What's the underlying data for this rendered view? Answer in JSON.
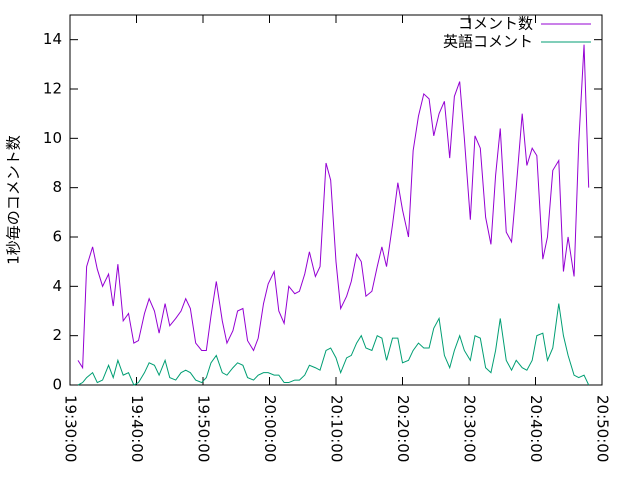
{
  "chart_data": {
    "type": "line",
    "y_label": "1秒毎のコメント数",
    "xlim": [
      0,
      80
    ],
    "xticks": [
      {
        "value": 0,
        "label": "19:30:00"
      },
      {
        "value": 10,
        "label": "19:40:00"
      },
      {
        "value": 20,
        "label": "19:50:00"
      },
      {
        "value": 30,
        "label": "20:00:00"
      },
      {
        "value": 40,
        "label": "20:10:00"
      },
      {
        "value": 50,
        "label": "20:20:00"
      },
      {
        "value": 60,
        "label": "20:30:00"
      },
      {
        "value": 70,
        "label": "20:40:00"
      },
      {
        "value": 80,
        "label": "20:50:00"
      }
    ],
    "ylim": [
      0,
      15
    ],
    "yticks": [
      0,
      2,
      4,
      6,
      8,
      10,
      12,
      14
    ],
    "legend": "top-right",
    "x": [
      1.2,
      1.9,
      2.5,
      3.4,
      4.1,
      4.9,
      5.8,
      6.5,
      7.2,
      8.0,
      8.8,
      9.6,
      10.3,
      11.2,
      11.9,
      12.7,
      13.4,
      14.3,
      15.0,
      15.9,
      16.7,
      17.4,
      18.1,
      18.9,
      19.8,
      20.5,
      21.2,
      22.0,
      22.9,
      23.6,
      24.5,
      25.2,
      26.0,
      26.7,
      27.6,
      28.3,
      29.1,
      29.8,
      30.7,
      31.4,
      32.2,
      32.9,
      33.8,
      34.5,
      35.3,
      36.0,
      36.9,
      37.6,
      38.5,
      39.2,
      40.0,
      40.7,
      41.6,
      42.3,
      43.1,
      43.8,
      44.5,
      45.4,
      46.2,
      46.9,
      47.6,
      48.5,
      49.3,
      50.0,
      50.9,
      51.6,
      52.4,
      53.2,
      54.0,
      54.7,
      55.5,
      56.3,
      57.1,
      57.8,
      58.6,
      59.3,
      60.2,
      60.9,
      61.7,
      62.5,
      63.3,
      64.0,
      64.7,
      65.6,
      66.4,
      67.1,
      68.0,
      68.7,
      69.5,
      70.2,
      71.1,
      71.8,
      72.6,
      73.5,
      74.2,
      74.9,
      75.8,
      76.5,
      77.3,
      78.0
    ],
    "series": [
      {
        "name": "コメント数",
        "color": "#9400d3",
        "values": [
          1.0,
          0.7,
          4.8,
          5.6,
          4.7,
          4.0,
          4.5,
          3.2,
          4.9,
          2.6,
          2.9,
          1.7,
          1.8,
          2.9,
          3.5,
          3.0,
          2.1,
          3.3,
          2.4,
          2.7,
          3.0,
          3.5,
          3.1,
          1.7,
          1.4,
          1.4,
          2.8,
          4.2,
          2.6,
          1.7,
          2.2,
          3.0,
          3.1,
          1.8,
          1.4,
          1.9,
          3.3,
          4.1,
          4.6,
          3.0,
          2.5,
          4.0,
          3.7,
          3.8,
          4.5,
          5.4,
          4.4,
          4.8,
          9.0,
          8.3,
          5.0,
          3.1,
          3.6,
          4.2,
          5.3,
          5.0,
          3.6,
          3.8,
          4.8,
          5.6,
          4.8,
          6.5,
          8.2,
          7.1,
          6.0,
          9.5,
          10.9,
          11.8,
          11.6,
          10.1,
          11.0,
          11.5,
          9.2,
          11.7,
          12.3,
          10.0,
          6.7,
          10.1,
          9.6,
          6.8,
          5.7,
          8.5,
          10.4,
          6.2,
          5.8,
          8.0,
          11.0,
          8.9,
          9.6,
          9.3,
          5.1,
          6.0,
          8.7,
          9.1,
          4.6,
          6.0,
          4.4,
          9.8,
          13.8,
          8.0
        ]
      },
      {
        "name": "英語コメント",
        "color": "#009e73",
        "values": [
          0.0,
          0.1,
          0.3,
          0.5,
          0.1,
          0.2,
          0.8,
          0.3,
          1.0,
          0.4,
          0.5,
          0.0,
          0.1,
          0.5,
          0.9,
          0.8,
          0.4,
          1.0,
          0.3,
          0.2,
          0.5,
          0.6,
          0.5,
          0.2,
          0.1,
          0.3,
          0.9,
          1.2,
          0.5,
          0.4,
          0.7,
          0.9,
          0.8,
          0.3,
          0.2,
          0.4,
          0.5,
          0.5,
          0.4,
          0.4,
          0.1,
          0.1,
          0.2,
          0.2,
          0.4,
          0.8,
          0.7,
          0.6,
          1.4,
          1.5,
          1.1,
          0.5,
          1.1,
          1.2,
          1.7,
          2.0,
          1.5,
          1.4,
          2.0,
          1.9,
          1.0,
          1.9,
          1.9,
          0.9,
          1.0,
          1.4,
          1.7,
          1.5,
          1.5,
          2.3,
          2.7,
          1.2,
          0.7,
          1.4,
          2.0,
          1.4,
          1.0,
          2.0,
          1.9,
          0.7,
          0.5,
          1.4,
          2.7,
          1.0,
          0.6,
          1.0,
          0.7,
          0.6,
          1.0,
          2.0,
          2.1,
          1.0,
          1.5,
          3.3,
          2.0,
          1.2,
          0.4,
          0.3,
          0.4,
          0.0
        ]
      }
    ]
  }
}
